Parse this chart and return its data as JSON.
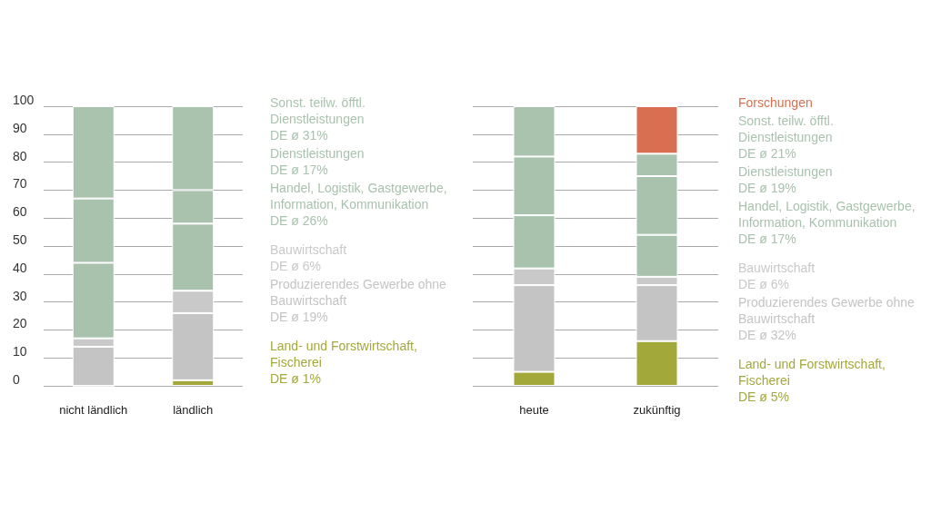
{
  "chart_data": [
    {
      "type": "bar",
      "stacked": true,
      "categories": [
        "nicht ländlich",
        "ländlich"
      ],
      "ylim": [
        0,
        100
      ],
      "yticks": [
        0,
        10,
        20,
        30,
        40,
        50,
        60,
        70,
        80,
        90,
        100
      ],
      "grid": "y",
      "legend": "right",
      "series": [
        {
          "name": "Land- und Forstwirtschaft, Fischerei",
          "color": "#a3a83a",
          "values": [
            0,
            2
          ]
        },
        {
          "name": "Produzierendes Gewerbe ohne Bauwirtschaft",
          "color": "#c4c4c4",
          "values": [
            14,
            24
          ]
        },
        {
          "name": "Bauwirtschaft",
          "color": "#c9c9c9",
          "values": [
            3,
            8
          ]
        },
        {
          "name": "Handel, Logistik, Gastgewerbe, Information, Kommunikation",
          "color": "#a8c2ad",
          "values": [
            27,
            24
          ]
        },
        {
          "name": "Dienstleistungen",
          "color": "#a8c2ae",
          "values": [
            23,
            12
          ]
        },
        {
          "name": "Sonst. teilw. öfftl. Dienstleistungen",
          "color": "#a9c3ae",
          "values": [
            33,
            30
          ]
        }
      ],
      "annotations": [
        "DE ø 1%",
        "DE ø 19%",
        "DE ø 6%",
        "DE ø 26%",
        "DE ø 17%",
        "DE ø 31%"
      ]
    },
    {
      "type": "bar",
      "stacked": true,
      "categories": [
        "heute",
        "zukünftig"
      ],
      "ylim": [
        0,
        100
      ],
      "yticks": [
        0,
        10,
        20,
        30,
        40,
        50,
        60,
        70,
        80,
        90,
        100
      ],
      "grid": "y",
      "legend": "right",
      "tick_labels": "x",
      "series": [
        {
          "name": "Land- und Forstwirtschaft, Fischerei",
          "color": "#a3a83a",
          "values": [
            5,
            16
          ]
        },
        {
          "name": "Produzierendes Gewerbe ohne Bauwirtschaft",
          "color": "#c4c4c4",
          "values": [
            31,
            20
          ]
        },
        {
          "name": "Bauwirtschaft",
          "color": "#c9c9c9",
          "values": [
            6,
            3
          ]
        },
        {
          "name": "Handel, Logistik, Gastgewerbe, Information, Kommunikation",
          "color": "#a8c2ad",
          "values": [
            19,
            15
          ]
        },
        {
          "name": "Dienstleistungen",
          "color": "#a8c2ae",
          "values": [
            21,
            21
          ]
        },
        {
          "name": "Sonst. teilw. öfftl. Dienstleistungen",
          "color": "#a9c3ae",
          "values": [
            18,
            8
          ]
        },
        {
          "name": "Forschungen",
          "color": "#d86f50",
          "values": [
            null,
            17
          ]
        }
      ],
      "annotations": [
        "DE ø 5%",
        "DE ø 32%",
        "DE ø 6%",
        "DE ø 17%",
        "DE ø 19%",
        "DE ø 21%"
      ]
    }
  ]
}
